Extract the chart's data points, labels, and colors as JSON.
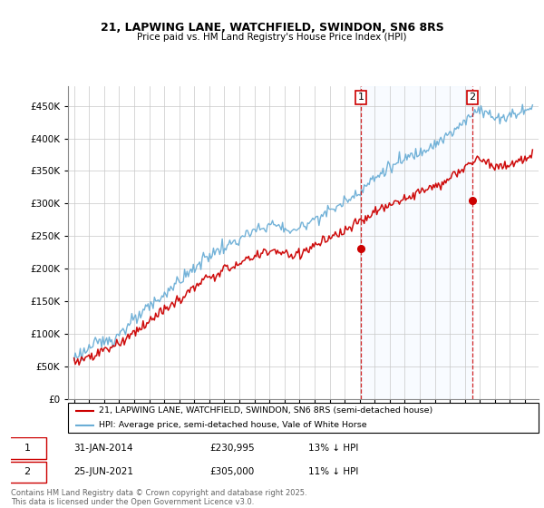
{
  "title_line1": "21, LAPWING LANE, WATCHFIELD, SWINDON, SN6 8RS",
  "title_line2": "Price paid vs. HM Land Registry's House Price Index (HPI)",
  "legend_line1": "21, LAPWING LANE, WATCHFIELD, SWINDON, SN6 8RS (semi-detached house)",
  "legend_line2": "HPI: Average price, semi-detached house, Vale of White Horse",
  "annotation1_date": "31-JAN-2014",
  "annotation1_price": "£230,995",
  "annotation1_hpi": "13% ↓ HPI",
  "annotation2_date": "25-JUN-2021",
  "annotation2_price": "£305,000",
  "annotation2_hpi": "11% ↓ HPI",
  "footer": "Contains HM Land Registry data © Crown copyright and database right 2025.\nThis data is licensed under the Open Government Licence v3.0.",
  "hpi_color": "#6baed6",
  "price_color": "#cc0000",
  "vline_color": "#cc0000",
  "shade_color": "#ddeeff",
  "ylim": [
    0,
    480000
  ],
  "yticks": [
    0,
    50000,
    100000,
    150000,
    200000,
    250000,
    300000,
    350000,
    400000,
    450000
  ],
  "p1_x": 2014.083,
  "p1_y": 230995,
  "p2_x": 2021.5,
  "p2_y": 305000,
  "xmin": 1994.6,
  "xmax": 2025.9
}
